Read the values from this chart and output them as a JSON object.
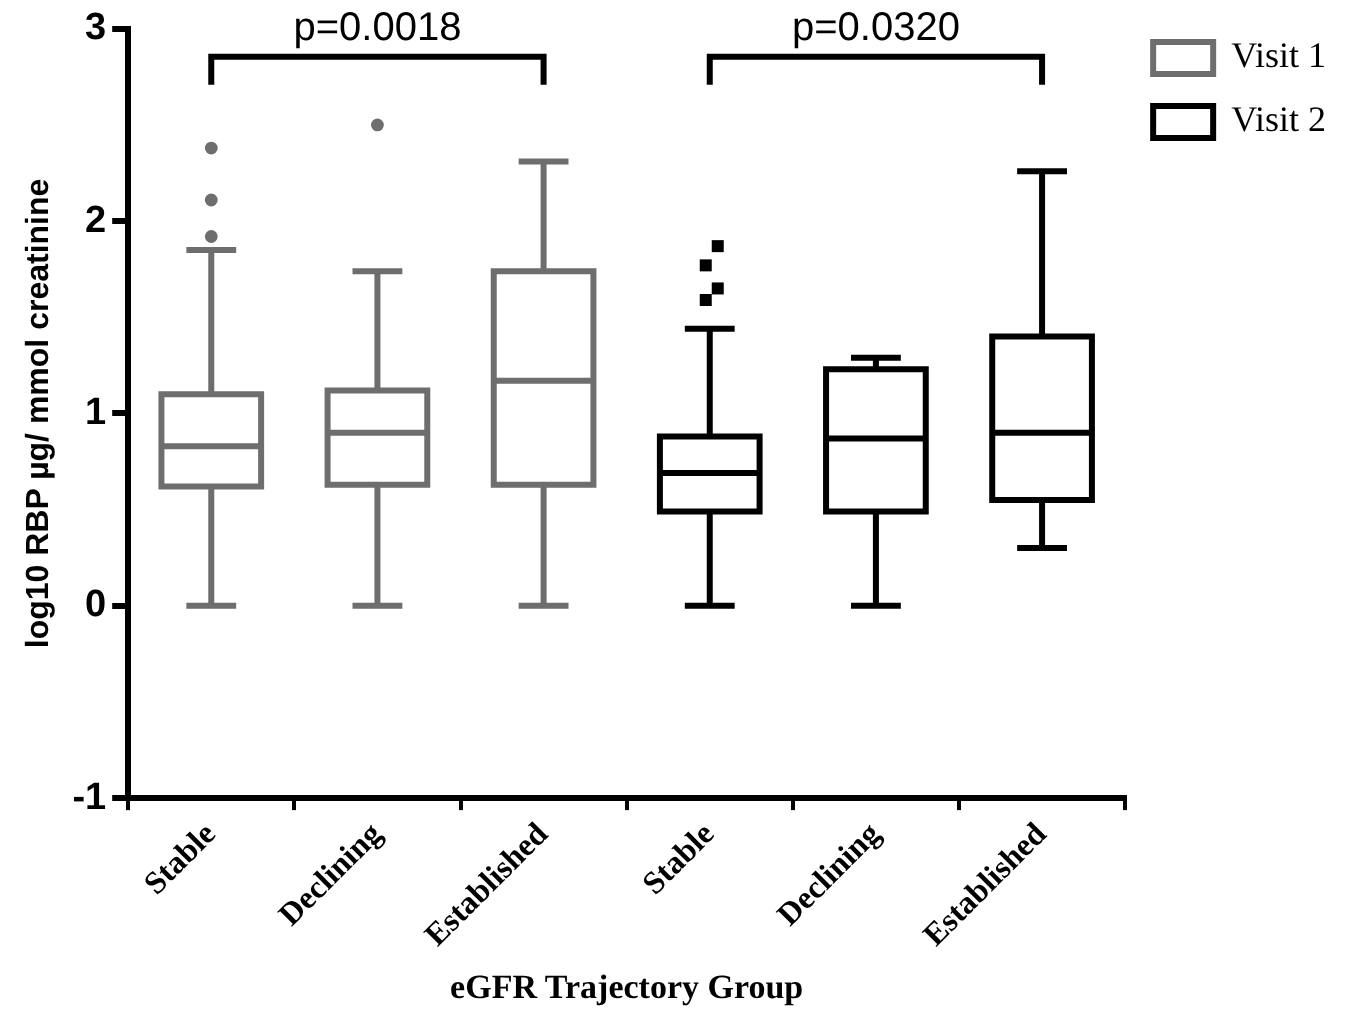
{
  "chart_data": {
    "type": "box",
    "xlabel": "eGFR Trajectory Group",
    "ylabel": "log10 RBP µg/ mmol creatinine",
    "categories": [
      "Stable",
      "Declining",
      "Established",
      "Stable",
      "Declining",
      "Established"
    ],
    "series": [
      {
        "name": "Visit 1",
        "color": "#6e6e6e",
        "marker": "circle",
        "boxes": [
          {
            "low": 0,
            "q1": 0.62,
            "median": 0.83,
            "q3": 1.1,
            "high": 1.85,
            "outliers": [
              1.92,
              2.11,
              2.38
            ]
          },
          {
            "low": 0,
            "q1": 0.63,
            "median": 0.9,
            "q3": 1.12,
            "high": 1.74,
            "outliers": [
              2.5
            ]
          },
          {
            "low": 0,
            "q1": 0.63,
            "median": 1.17,
            "q3": 1.74,
            "high": 2.31
          },
          null,
          null,
          null
        ]
      },
      {
        "name": "Visit 2",
        "color": "#000000",
        "marker": "square",
        "boxes": [
          null,
          null,
          null,
          {
            "low": 0,
            "q1": 0.49,
            "median": 0.69,
            "q3": 0.88,
            "high": 1.44,
            "outliers": [
              1.59,
              1.65,
              1.77,
              1.87
            ]
          },
          {
            "low": 0,
            "q1": 0.49,
            "median": 0.87,
            "q3": 1.23,
            "high": 1.29
          },
          {
            "low": 0.3,
            "q1": 0.55,
            "median": 0.9,
            "q3": 1.4,
            "high": 2.26
          }
        ]
      }
    ],
    "annotations": [
      "p=0.0018",
      "p=0.0320"
    ],
    "ylim": [
      -1,
      3
    ],
    "yticks": [
      -1,
      0,
      1,
      2,
      3
    ],
    "grid": false,
    "legend": "top right"
  }
}
